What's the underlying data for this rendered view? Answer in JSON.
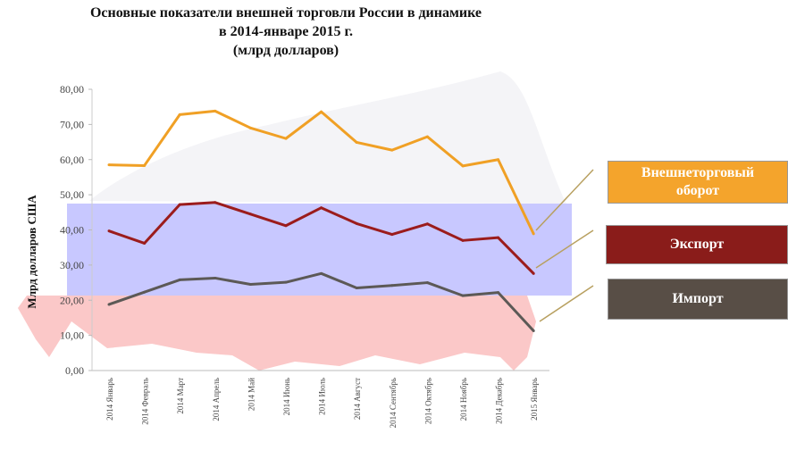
{
  "chart_data": {
    "type": "line",
    "title": "Основные показатели внешней торговли России в динамике в 2014-январе 2015 г. (млрд долларов)",
    "title_lines": [
      "Основные показатели внешней торговли России в динамике",
      "в 2014-январе 2015 г.",
      "(млрд долларов)"
    ],
    "xlabel": "",
    "ylabel": "Млрд долларов США",
    "ylim": [
      0,
      80
    ],
    "yticks": [
      "0,00",
      "10,00",
      "20,00",
      "30,00",
      "40,00",
      "50,00",
      "60,00",
      "70,00",
      "80,00"
    ],
    "ytick_values": [
      0,
      10,
      20,
      30,
      40,
      50,
      60,
      70,
      80
    ],
    "categories": [
      "2014 Январь",
      "2014 Февраль",
      "2014 Март",
      "2014 Апрель",
      "2014 Май",
      "2014 Июнь",
      "2014 Июль",
      "2014 Август",
      "2014 Сентябрь",
      "2014 Октябрь",
      "2014 Ноябрь",
      "2014 Декабрь",
      "2015 Январь"
    ],
    "legend_placement": "right",
    "series": [
      {
        "name": "Внешнеторговый оборот",
        "color": "#f0a025",
        "box_color": "#f4a42c",
        "values": [
          58.5,
          58.3,
          72.8,
          73.8,
          69.0,
          66.0,
          73.6,
          64.9,
          62.7,
          66.5,
          58.2,
          60.0,
          38.9
        ]
      },
      {
        "name": "Экспорт",
        "color": "#9b1c1c",
        "box_color": "#8a1c1a",
        "values": [
          39.7,
          36.2,
          47.2,
          47.8,
          44.5,
          41.2,
          46.3,
          41.8,
          38.7,
          41.7,
          37.0,
          37.8,
          27.6
        ]
      },
      {
        "name": "Импорт",
        "color": "#5c5956",
        "box_color": "#584e46",
        "values": [
          18.8,
          22.3,
          25.8,
          26.3,
          24.5,
          25.1,
          27.6,
          23.5,
          24.2,
          25.0,
          21.3,
          22.2,
          11.3
        ]
      }
    ]
  }
}
